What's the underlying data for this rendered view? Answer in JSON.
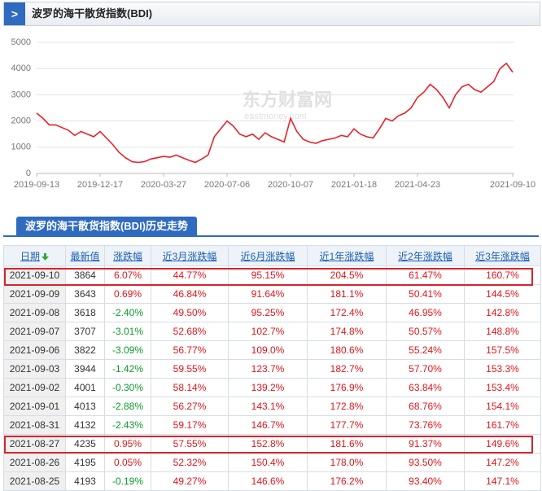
{
  "header": {
    "title": "波罗的海干散货指数(BDI)"
  },
  "watermark": {
    "name": "东方财富网",
    "url": "eastmoney.com"
  },
  "chart_data": {
    "type": "line",
    "color": "#e8222a",
    "grid": true,
    "categories": [
      "2019-09-13",
      null,
      null,
      null,
      null,
      null,
      null,
      null,
      null,
      null,
      "2019-12-17",
      null,
      null,
      null,
      null,
      null,
      null,
      null,
      null,
      null,
      "2020-03-27",
      null,
      null,
      null,
      null,
      null,
      null,
      null,
      null,
      null,
      "2020-07-06",
      null,
      null,
      null,
      null,
      null,
      null,
      null,
      null,
      null,
      "2020-10-07",
      null,
      null,
      null,
      null,
      null,
      null,
      null,
      null,
      null,
      "2021-01-18",
      null,
      null,
      null,
      null,
      null,
      null,
      null,
      null,
      null,
      "2021-04-23",
      null,
      null,
      null,
      null,
      null,
      null,
      null,
      null,
      null,
      null,
      null,
      null,
      null,
      null,
      "2021-09-10"
    ],
    "values": [
      2300,
      2100,
      1850,
      1850,
      1750,
      1650,
      1450,
      1600,
      1500,
      1400,
      1600,
      1350,
      1100,
      800,
      600,
      450,
      420,
      450,
      550,
      600,
      650,
      620,
      700,
      600,
      500,
      420,
      550,
      700,
      1400,
      1700,
      2000,
      1800,
      1500,
      1400,
      1500,
      1300,
      1550,
      1400,
      1300,
      1200,
      2100,
      1600,
      1300,
      1200,
      1150,
      1250,
      1300,
      1350,
      1450,
      1400,
      1700,
      1500,
      1400,
      1350,
      1700,
      2100,
      2000,
      2200,
      2300,
      2500,
      2900,
      3100,
      3400,
      3200,
      2900,
      2500,
      3000,
      3300,
      3400,
      3200,
      3100,
      3300,
      3500,
      4000,
      4200,
      3864
    ],
    "ylim": [
      0,
      5000
    ],
    "yticks": [
      0,
      1000,
      2000,
      3000,
      4000,
      5000
    ]
  },
  "section": {
    "title": "波罗的海干散货指数(BDI)历史走势"
  },
  "table": {
    "columns": [
      "日期",
      "最新值",
      "涨跌幅",
      "近3月涨跌幅",
      "近6月涨跌幅",
      "近1年涨跌幅",
      "近2年涨跌幅",
      "近3年涨跌幅"
    ],
    "rows": [
      [
        "2021-09-10",
        "3864",
        "6.07%",
        "44.77%",
        "95.15%",
        "204.5%",
        "61.47%",
        "160.7%"
      ],
      [
        "2021-09-09",
        "3643",
        "0.69%",
        "46.84%",
        "91.64%",
        "181.1%",
        "50.41%",
        "144.5%"
      ],
      [
        "2021-09-08",
        "3618",
        "-2.40%",
        "49.50%",
        "95.25%",
        "172.4%",
        "46.95%",
        "142.8%"
      ],
      [
        "2021-09-07",
        "3707",
        "-3.01%",
        "52.68%",
        "102.7%",
        "174.8%",
        "50.57%",
        "148.8%"
      ],
      [
        "2021-09-06",
        "3822",
        "-3.09%",
        "56.77%",
        "109.0%",
        "180.6%",
        "55.24%",
        "157.5%"
      ],
      [
        "2021-09-03",
        "3944",
        "-1.42%",
        "59.55%",
        "123.7%",
        "182.7%",
        "57.70%",
        "153.3%"
      ],
      [
        "2021-09-02",
        "4001",
        "-0.30%",
        "58.14%",
        "139.2%",
        "176.9%",
        "63.84%",
        "153.4%"
      ],
      [
        "2021-09-01",
        "4013",
        "-2.88%",
        "56.27%",
        "143.1%",
        "172.8%",
        "68.76%",
        "154.1%"
      ],
      [
        "2021-08-31",
        "4132",
        "-2.43%",
        "59.17%",
        "146.7%",
        "177.7%",
        "73.76%",
        "161.7%"
      ],
      [
        "2021-08-27",
        "4235",
        "0.95%",
        "57.55%",
        "152.8%",
        "181.6%",
        "91.37%",
        "149.6%"
      ],
      [
        "2021-08-26",
        "4195",
        "0.05%",
        "52.32%",
        "150.4%",
        "178.0%",
        "93.50%",
        "147.2%"
      ],
      [
        "2021-08-25",
        "4193",
        "-0.19%",
        "49.27%",
        "146.6%",
        "176.2%",
        "93.40%",
        "147.1%"
      ]
    ]
  }
}
